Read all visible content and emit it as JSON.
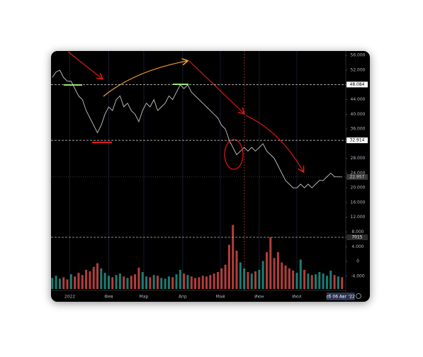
{
  "chart_data": {
    "type": "line",
    "x": [
      -14,
      -11,
      -8,
      -5,
      -2,
      1,
      4,
      7,
      10,
      13,
      16,
      19,
      22,
      25,
      28,
      31,
      34,
      37,
      40,
      43,
      46,
      49,
      52,
      55,
      58,
      61,
      64,
      67,
      70,
      73,
      76,
      79,
      82,
      85,
      88,
      91,
      94,
      97,
      100,
      103,
      106,
      109,
      112,
      115,
      118,
      121,
      124,
      127,
      130,
      133,
      136,
      139,
      142,
      145,
      148,
      151,
      154,
      157,
      160,
      163,
      166,
      169,
      172,
      175,
      178,
      181,
      184,
      187,
      190,
      193,
      196,
      199,
      202,
      205,
      208,
      211,
      214,
      217
    ],
    "series": [
      {
        "color": "#b4b4b4",
        "values": [
          50,
          51.5,
          52,
          50,
          49,
          49,
          47,
          45,
          44,
          41,
          39,
          37,
          35,
          37,
          40,
          42,
          41,
          44,
          45,
          42,
          43,
          41,
          40,
          38,
          41,
          43,
          42,
          44,
          41,
          42,
          43,
          45,
          44,
          46,
          48,
          47,
          48,
          46,
          45,
          44,
          43,
          42,
          41,
          40,
          39,
          37,
          36,
          33,
          31,
          29,
          30,
          31,
          30,
          31,
          30,
          31,
          32,
          30,
          29,
          28,
          26,
          24,
          22,
          21,
          20,
          20,
          21,
          20,
          21,
          20,
          21,
          22,
          22,
          23,
          24,
          23,
          23,
          22.957
        ]
      }
    ],
    "volume": {
      "color_up": "#26a69a",
      "color_down": "#ef5350",
      "values": [
        1500,
        1800,
        1400,
        1600,
        1300,
        2000,
        1700,
        2200,
        1900,
        2600,
        2400,
        3000,
        3500,
        2800,
        2200,
        1800,
        1600,
        1900,
        2100,
        1700,
        1500,
        1800,
        2000,
        2900,
        2300,
        1700,
        1600,
        1900,
        1800,
        1500,
        1400,
        1700,
        1600,
        2000,
        2600,
        2100,
        1900,
        1700,
        1500,
        1600,
        1800,
        1700,
        1900,
        2100,
        2300,
        2800,
        3300,
        6000,
        8700,
        5200,
        3600,
        2800,
        2300,
        2100,
        2400,
        2600,
        3800,
        5000,
        7000,
        4200,
        5000,
        3600,
        3200,
        2800,
        2500,
        2200,
        4000,
        2600,
        2100,
        1900,
        2000,
        2300,
        2100,
        1800,
        2500,
        1900,
        1700,
        1600
      ]
    },
    "xlim": [
      -15,
      220
    ],
    "ylim": [
      -7.5,
      57.2
    ],
    "vlim": [
      0,
      32300
    ],
    "yticks": [
      {
        "value": 56,
        "label": "56.000"
      },
      {
        "value": 52,
        "label": "52.000"
      },
      {
        "value": 44,
        "label": "44.000"
      },
      {
        "value": 40,
        "label": "40.000"
      },
      {
        "value": 36,
        "label": "36.000"
      },
      {
        "value": 28,
        "label": "28.000"
      },
      {
        "value": 24,
        "label": "24.000"
      },
      {
        "value": 20,
        "label": "20.000"
      },
      {
        "value": 16,
        "label": "16.000"
      },
      {
        "value": 12,
        "label": "12.000"
      },
      {
        "value": 8,
        "label": "8.000"
      },
      {
        "value": 4,
        "label": "4.000"
      },
      0,
      {
        "value": -4,
        "label": "-4.000"
      }
    ],
    "xticks": [
      {
        "value": 0,
        "label": "2022"
      },
      {
        "value": 31,
        "label": "Фев"
      },
      {
        "value": 59,
        "label": "Мар"
      },
      {
        "value": 90,
        "label": "Апр"
      },
      {
        "value": 120,
        "label": "Май"
      },
      {
        "value": 151,
        "label": "Июн"
      },
      {
        "value": 181,
        "label": "Июл"
      }
    ],
    "price_lines": [
      48.084,
      32.914
    ],
    "last_price": 22.957,
    "volume_line": 7015,
    "crosshair": {
      "value": 217,
      "label": "сб 06 Авг '22"
    }
  }
}
